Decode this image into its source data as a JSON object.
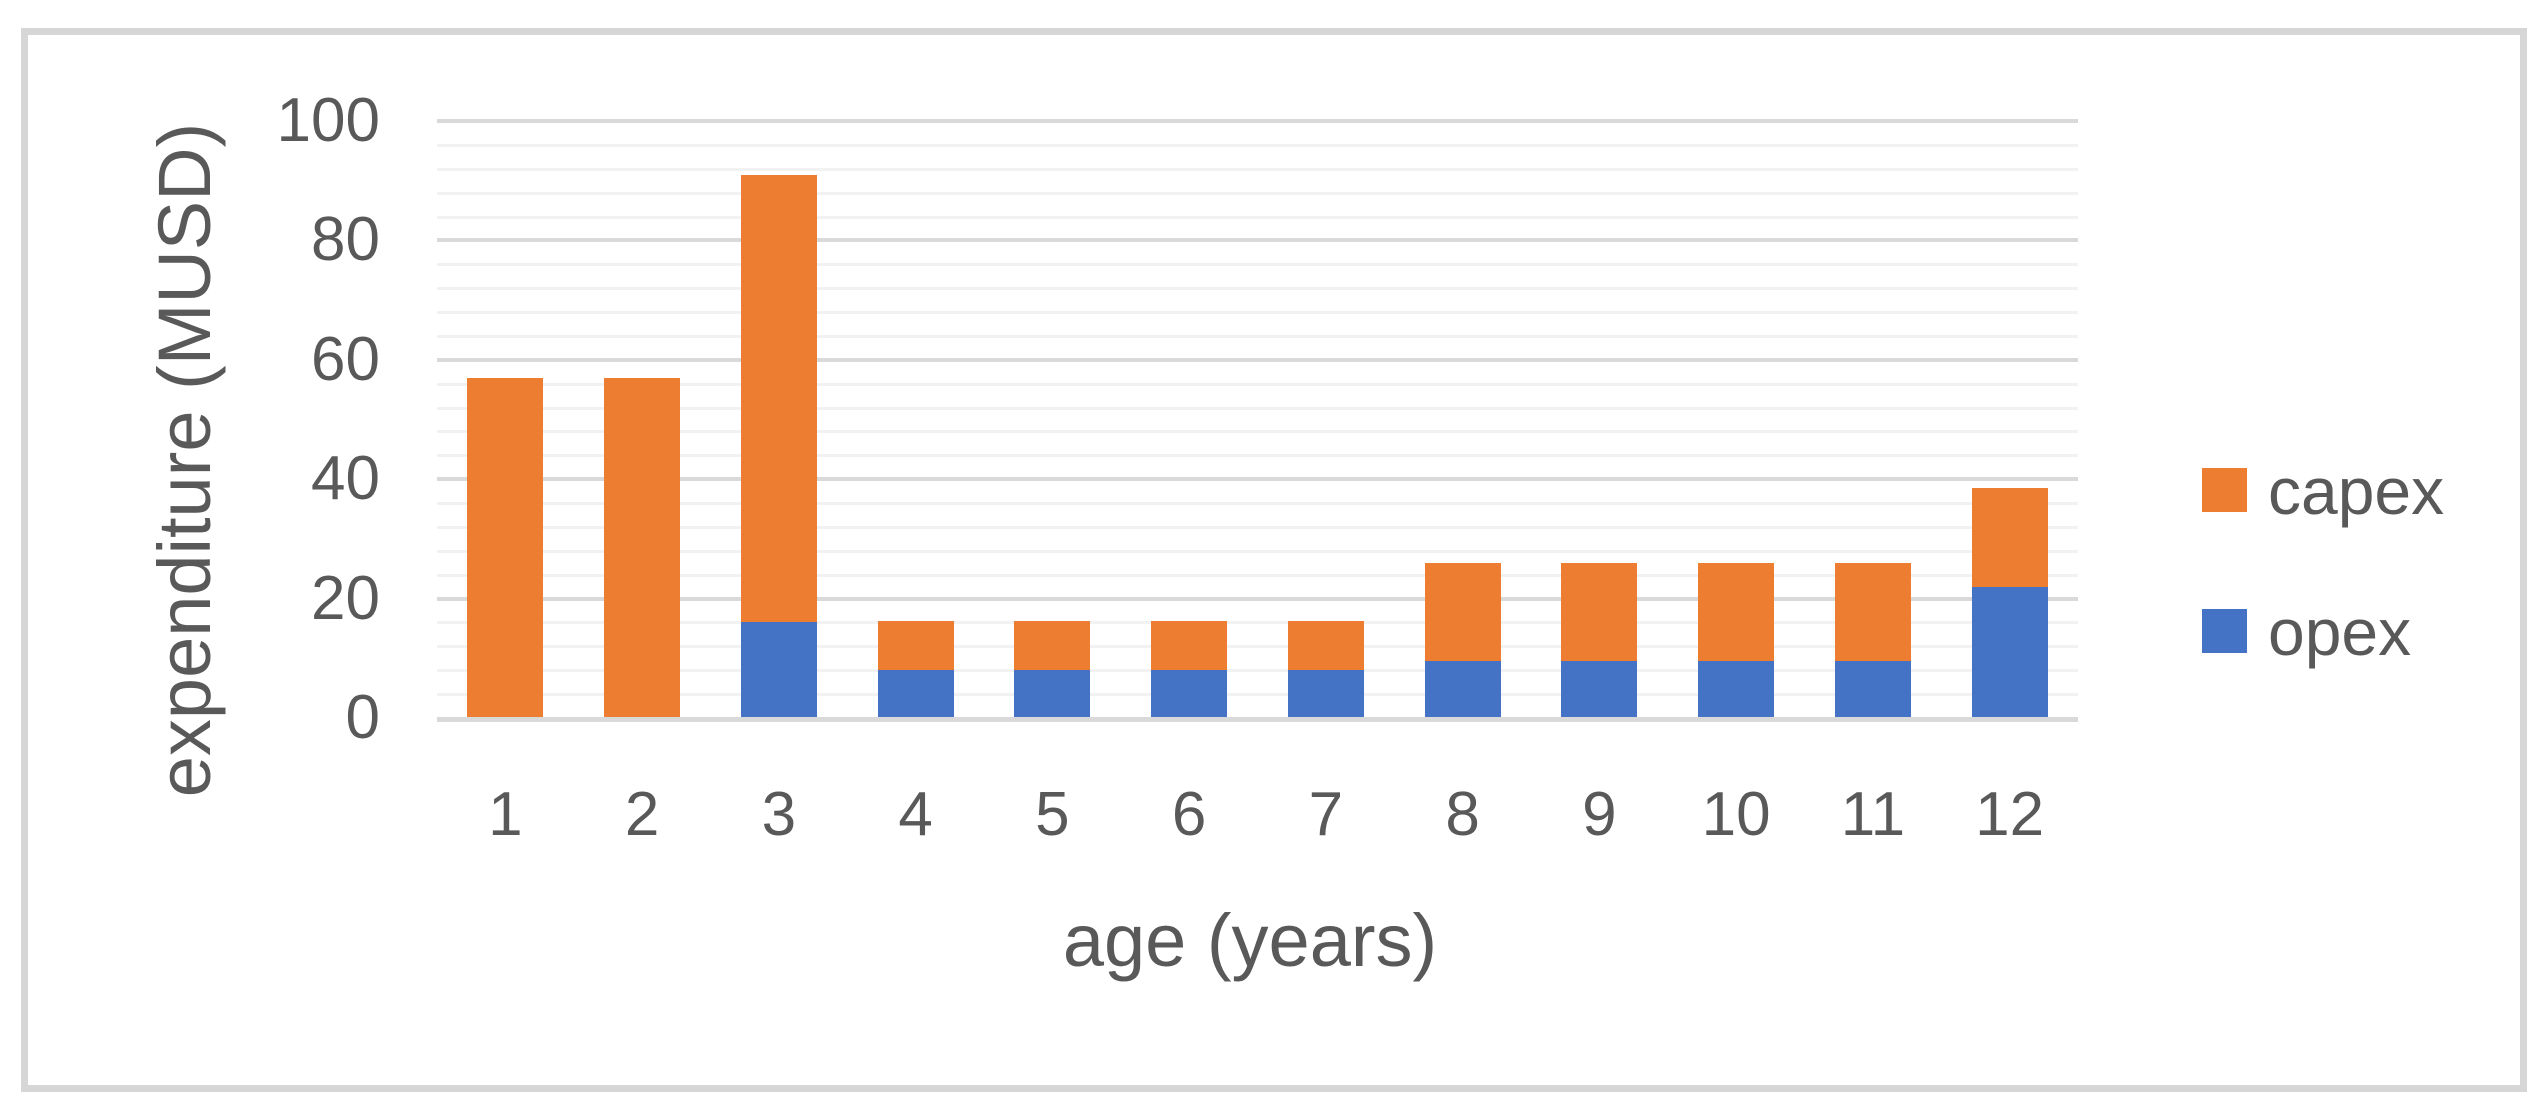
{
  "chart_data": {
    "type": "bar",
    "stacked": true,
    "title": "",
    "xlabel": "age (years)",
    "ylabel": "expenditure (MUSD)",
    "categories": [
      "1",
      "2",
      "3",
      "4",
      "5",
      "6",
      "7",
      "8",
      "9",
      "10",
      "11",
      "12"
    ],
    "series": [
      {
        "name": "capex",
        "color": "#ED7D31",
        "values": [
          57,
          57,
          75,
          8.3,
          8.3,
          8.3,
          8.3,
          16.5,
          16.5,
          16.5,
          16.5,
          16.5
        ]
      },
      {
        "name": "opex",
        "color": "#4472C4",
        "values": [
          0,
          0,
          16,
          8,
          8,
          8,
          8,
          9.5,
          9.5,
          9.5,
          9.5,
          22
        ]
      }
    ],
    "stack_order_bottom_to_top": [
      "opex",
      "capex"
    ],
    "legend_order_top_to_bottom": [
      "capex",
      "opex"
    ],
    "legend_position": "right",
    "ylim": [
      0,
      100
    ],
    "y_ticks": [
      0,
      20,
      40,
      60,
      80,
      100
    ],
    "y_minor_unit": 4,
    "grid": "horizontal",
    "colors": {
      "major_gridline": "#d9d9d9",
      "minor_gridline": "#f2f2f2",
      "axis_line": "#d9d9d9",
      "text": "#595959",
      "frame_border": "#d6d6d6",
      "background": "#ffffff"
    }
  }
}
